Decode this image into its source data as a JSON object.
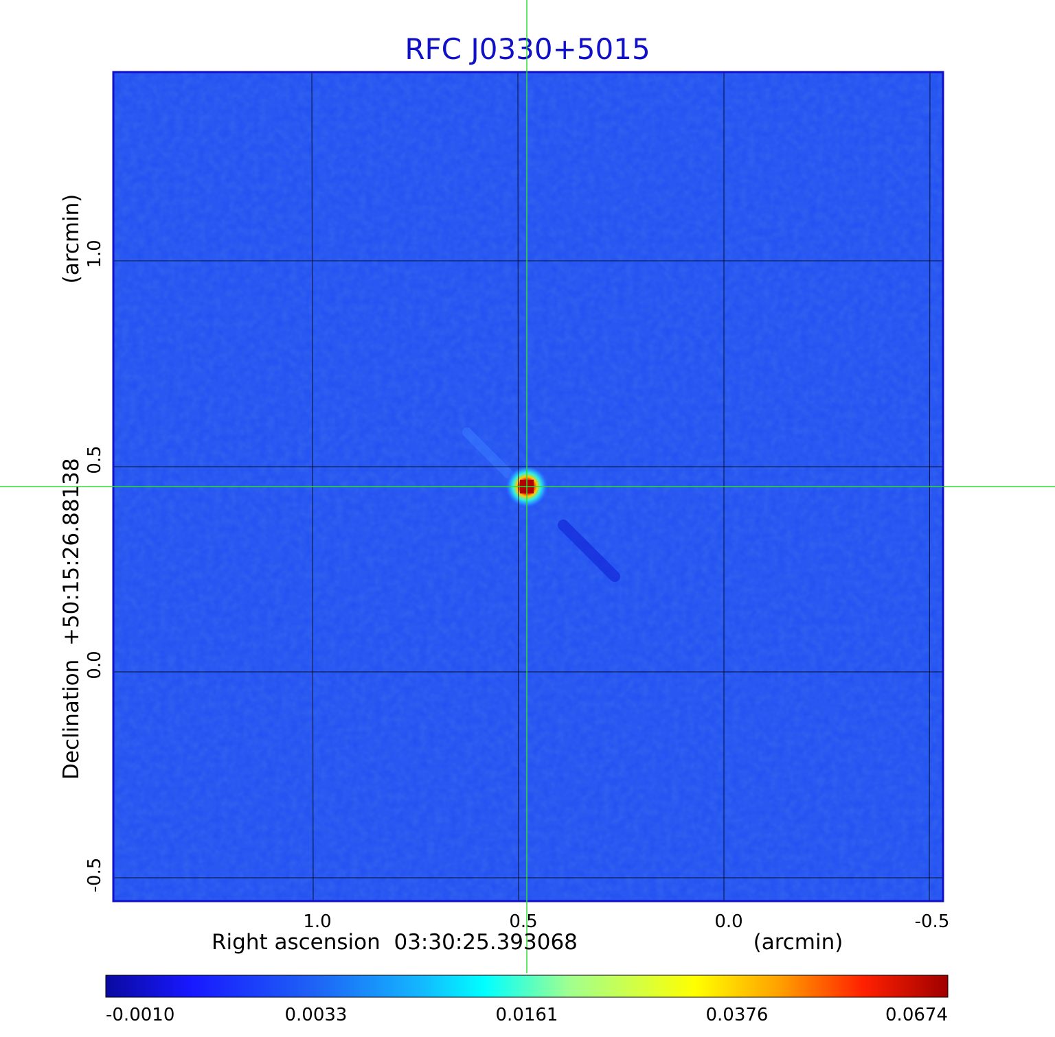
{
  "title": "RFC J0330+5015",
  "x_axis": {
    "label": "Right ascension  03:30:25.393068",
    "unit": "(arcmin)",
    "ticks": [
      "1.0",
      "0.5",
      "0.0",
      "-0.5"
    ]
  },
  "y_axis": {
    "label": "Declination  +50:15:26.88138",
    "unit": "(arcmin)",
    "ticks": [
      "1.0",
      "0.5",
      "0.0",
      "-0.5"
    ]
  },
  "colorbar": {
    "ticks": [
      "-0.0010",
      "0.0033",
      "0.0161",
      "0.0376",
      "0.0674"
    ]
  },
  "colors": {
    "background_map": "#1f4ef2",
    "frame": "#1010c8",
    "crosshair": "#33dd33",
    "grid": "#000000"
  }
}
